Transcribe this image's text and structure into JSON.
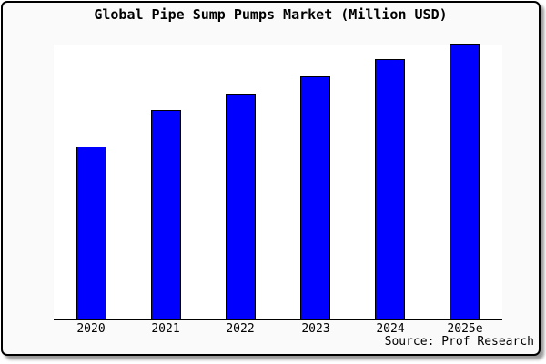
{
  "title": "Global Pipe Sump Pumps Market (Million USD)",
  "source_credit": "Source: Prof Research",
  "chart_data": {
    "type": "bar",
    "title": "Global Pipe Sump Pumps Market (Million USD)",
    "categories": [
      "2020",
      "2021",
      "2022",
      "2023",
      "2024",
      "2025e"
    ],
    "values": [
      62.5,
      75.8,
      81.7,
      88.0,
      94.3,
      100.0
    ],
    "value_scale_note": "no y-axis labels shown; values estimated relative to 2025e bar = 100",
    "xlabel": "",
    "ylabel": "",
    "ylim": [
      0,
      100
    ],
    "grid": false,
    "legend": false,
    "y_axis_labeled": false,
    "annotation": "Source: Prof Research",
    "colors": {
      "bar_fill": "#0000ff",
      "bar_border": "#000000",
      "plot_background": "#ffffff",
      "card_background": "#fafafa",
      "frame_border": "#000000",
      "text": "#000000",
      "shadow": "#999999"
    }
  }
}
